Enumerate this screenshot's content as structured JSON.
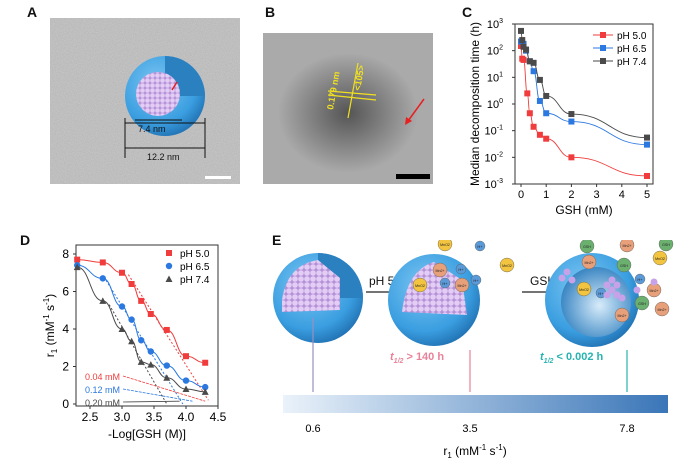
{
  "panels": {
    "a": "A",
    "b": "B",
    "c": "C",
    "d": "D",
    "e": "E"
  },
  "panel_a": {
    "inner_size": "7.4 nm",
    "outer_size": "12.2 nm"
  },
  "panel_b": {
    "spacing": "0.179 nm",
    "plane": "<105>"
  },
  "panel_e": {
    "step1": "pH 5.0",
    "step2": "GSH",
    "t1_prefix": "t",
    "t1_sub": "1/2",
    "t1_value": " > 140 h",
    "t2_prefix": "t",
    "t2_sub": "1/2",
    "t2_value": " < 0.002 h",
    "scale_labels": [
      "0.6",
      "3.5",
      "7.8"
    ],
    "scale_axis_label": "r",
    "scale_axis_sub": "1",
    "scale_axis_unit": " (mM",
    "scale_axis_unit_sup": "-1",
    "scale_axis_unit_rest": " s",
    "scale_axis_unit_sup2": "-1",
    "scale_axis_unit_end": ")",
    "marker_colors": [
      "#9a90c0",
      "#e8829a",
      "#27b3b0"
    ],
    "bar_colors": [
      "#eaf2fa",
      "#3a76b8"
    ],
    "species": [
      "MnO2",
      "Mn2+",
      "H+",
      "GSH"
    ]
  },
  "chart_data": [
    {
      "type": "scatter",
      "panel": "C",
      "xlabel": "GSH (mM)",
      "ylabel": "Median decomposition time (h)",
      "yscale": "log",
      "xlim": [
        -0.2,
        5.2
      ],
      "ylim": [
        0.001,
        1000
      ],
      "xticks": [
        "0",
        "1",
        "2",
        "3",
        "4",
        "5"
      ],
      "yticks": [
        "10",
        "10",
        "10",
        "10",
        "10",
        "10",
        "10"
      ],
      "ytick_exponents": [
        "-3",
        "-2",
        "-1",
        "0",
        "1",
        "2",
        "3"
      ],
      "legend": "top-right",
      "series": [
        {
          "name": "pH 5.0",
          "color": "#f03c3c",
          "x": [
            0,
            0.05,
            0.1,
            0.25,
            0.35,
            0.5,
            0.75,
            1,
            2,
            5
          ],
          "y": [
            150,
            50,
            45,
            2.5,
            0.45,
            0.14,
            0.07,
            0.05,
            0.01,
            0.002
          ]
        },
        {
          "name": "pH 6.5",
          "color": "#2a78e0",
          "x": [
            0,
            0.1,
            0.2,
            0.35,
            0.5,
            0.75,
            1,
            2,
            5
          ],
          "y": [
            220,
            180,
            100,
            40,
            17,
            1.3,
            0.45,
            0.22,
            0.03
          ]
        },
        {
          "name": "pH 7.4",
          "color": "#4a4a4a",
          "x": [
            0,
            0.05,
            0.1,
            0.2,
            0.35,
            0.5,
            0.75,
            1,
            2,
            5
          ],
          "y": [
            550,
            250,
            140,
            110,
            40,
            35,
            8,
            2,
            0.42,
            0.055
          ]
        }
      ]
    },
    {
      "type": "scatter",
      "panel": "D",
      "xlabel": "-Log[GSH (M)]",
      "ylabel": "r",
      "ylabel_sub": "1",
      "ylabel_unit": " (mM",
      "ylabel_sup": "-1",
      "ylabel_rest": " s",
      "ylabel_sup2": "-1",
      "ylabel_end": ")",
      "xlim": [
        2.2,
        4.5
      ],
      "ylim": [
        0,
        8.5
      ],
      "xticks": [
        "2.5",
        "3.0",
        "3.5",
        "4.0",
        "4.5"
      ],
      "yticks": [
        "0",
        "2",
        "4",
        "6",
        "8"
      ],
      "legend": "top-right",
      "annotations": [
        {
          "text": "0.04 mM",
          "color": "#f03c3c"
        },
        {
          "text": "0.12 mM",
          "color": "#2a78e0"
        },
        {
          "text": "0.20 mM",
          "color": "#4a4a4a"
        }
      ],
      "series": [
        {
          "name": "pH 5.0",
          "color": "#f03c3c",
          "marker": "square",
          "x": [
            2.3,
            2.7,
            3.0,
            3.15,
            3.3,
            3.45,
            3.7,
            4.0,
            4.3
          ],
          "y": [
            7.7,
            7.55,
            7.0,
            6.4,
            5.5,
            4.8,
            3.95,
            2.55,
            2.2
          ]
        },
        {
          "name": "pH 6.5",
          "color": "#2a78e0",
          "marker": "circle",
          "x": [
            2.3,
            2.7,
            3.0,
            3.15,
            3.3,
            3.45,
            3.7,
            4.0,
            4.3
          ],
          "y": [
            7.4,
            6.7,
            5.2,
            4.5,
            3.4,
            2.8,
            2.05,
            1.25,
            0.9
          ]
        },
        {
          "name": "pH 7.4",
          "color": "#4a4a4a",
          "marker": "triangle",
          "x": [
            2.3,
            2.7,
            3.0,
            3.15,
            3.3,
            3.45,
            3.7,
            4.0,
            4.3
          ],
          "y": [
            7.3,
            5.5,
            4.0,
            3.35,
            2.25,
            2.1,
            1.4,
            0.8,
            0.65
          ]
        }
      ]
    }
  ]
}
